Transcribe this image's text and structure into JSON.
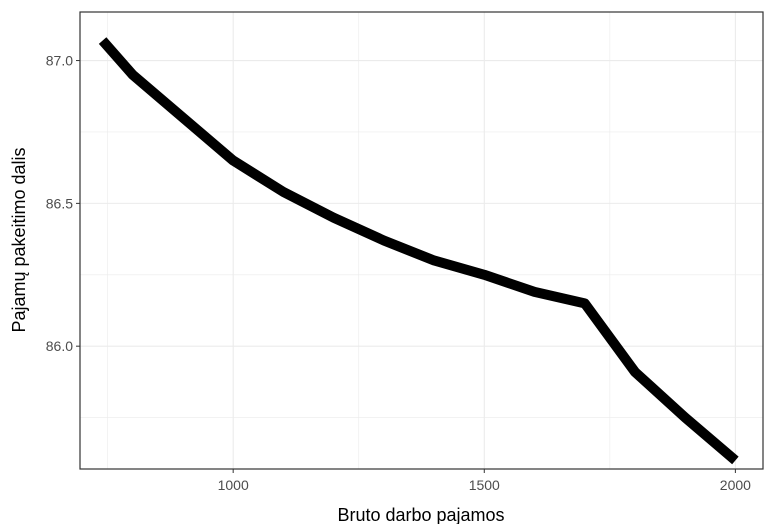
{
  "chart_data": {
    "type": "line",
    "title": "",
    "xlabel": "Bruto darbo pajamos",
    "ylabel": "Pajamų pakeitimo dalis",
    "xlim": [
      695,
      2055
    ],
    "ylim": [
      85.57,
      87.17
    ],
    "x_ticks": [
      1000,
      1500,
      2000
    ],
    "x_tick_labels": [
      "1000",
      "1500",
      "2000"
    ],
    "y_ticks": [
      86.0,
      86.5,
      87.0
    ],
    "y_tick_labels": [
      "86.0",
      "86.5",
      "87.0"
    ],
    "grid": true,
    "legend": "none",
    "series": [
      {
        "x": [
          740,
          800,
          900,
          1000,
          1100,
          1200,
          1300,
          1400,
          1500,
          1600,
          1700,
          1800,
          1900,
          2000
        ],
        "y": [
          87.07,
          86.95,
          86.8,
          86.65,
          86.54,
          86.45,
          86.37,
          86.3,
          86.25,
          86.19,
          86.15,
          85.91,
          85.75,
          85.6
        ]
      }
    ],
    "colors": {
      "line": "#000000",
      "grid": "#ebebeb",
      "panel_border": "#333333",
      "background": "#ffffff"
    }
  }
}
